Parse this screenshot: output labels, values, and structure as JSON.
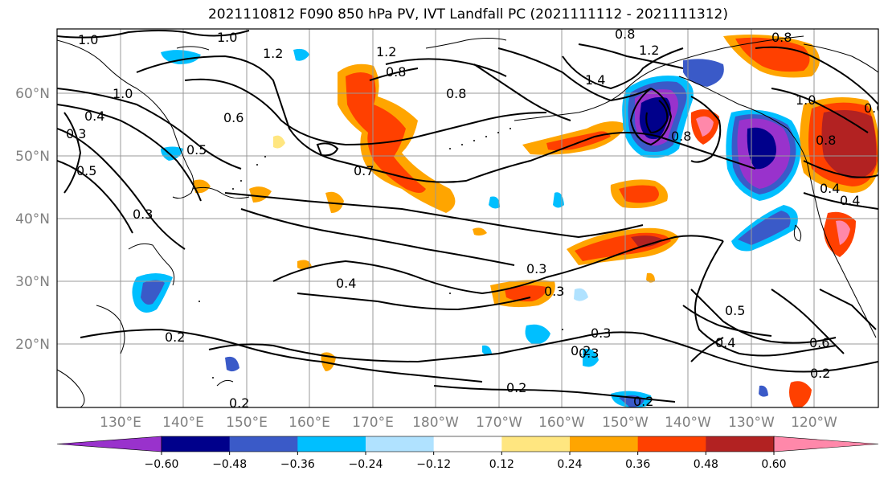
{
  "title": "2021110812 F090 850 hPa PV, IVT Landfall PC (2021111112 - 2021111312)",
  "lat_labels": [
    "60°N",
    "50°N",
    "40°N",
    "30°N",
    "20°N"
  ],
  "lon_labels": [
    "130°E",
    "140°E",
    "150°E",
    "160°E",
    "170°E",
    "180°W",
    "170°W",
    "160°W",
    "150°W",
    "140°W",
    "130°W",
    "120°W"
  ],
  "colorbar": {
    "colors": [
      "#9932cc",
      "#00008b",
      "#3a5ac8",
      "#00bfff",
      "#b0e2ff",
      "#ffffff",
      "#ffe680",
      "#ffa500",
      "#ff4000",
      "#b22222",
      "#ff88aa"
    ],
    "tick_labels": [
      "−0.60",
      "−0.48",
      "−0.36",
      "−0.24",
      "−0.12",
      "0.12",
      "0.24",
      "0.36",
      "0.48",
      "0.60"
    ]
  },
  "contour_labels": [
    "1.0",
    "1.0",
    "1.2",
    "1.2",
    "0.8",
    "0.8",
    "0.8",
    "0.8",
    "1.2",
    "1.4",
    "0.8",
    "1.0",
    "0.8",
    "1.0",
    "0.4",
    "0.3",
    "0.6",
    "0.5",
    "0.5",
    "0.7",
    "0.3",
    "0.4",
    "0.3",
    "0.4",
    "0.3",
    "0.3",
    "0.3",
    "0.5",
    "0.4",
    "0.6",
    "0.2",
    "0.2",
    "0.2",
    "0.2",
    "0.2",
    "0.2",
    "0.4",
    "0.6"
  ]
}
